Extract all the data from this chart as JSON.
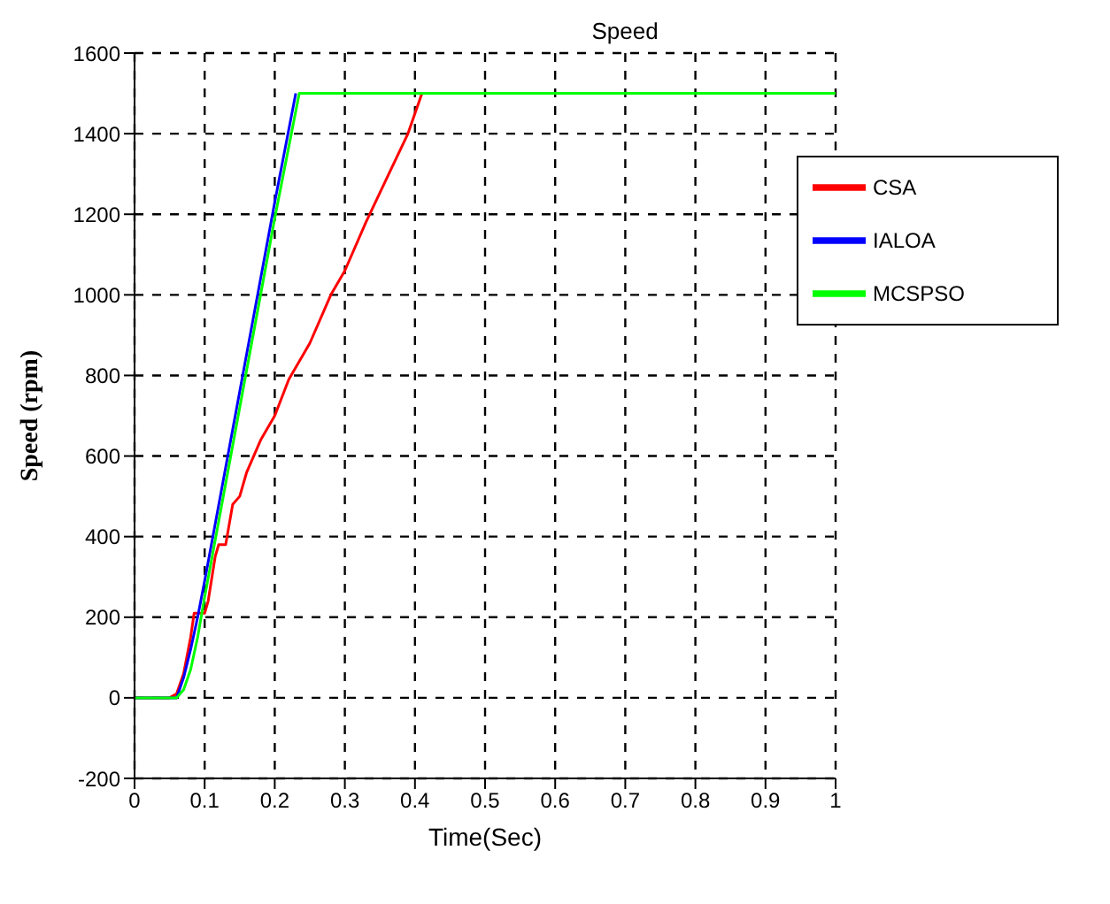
{
  "chart_data": {
    "type": "line",
    "title": "Speed",
    "xlabel": "Time(Sec)",
    "ylabel": "Speed (rpm)",
    "xlim": [
      0,
      1
    ],
    "xticks": [
      0,
      0.1,
      0.2,
      0.3,
      0.4,
      0.5,
      0.6,
      0.7,
      0.8,
      0.9,
      1
    ],
    "ylim": [
      -200,
      1600
    ],
    "yticks": [
      -200,
      0,
      200,
      400,
      600,
      800,
      1000,
      1200,
      1400,
      1600
    ],
    "grid": true,
    "legend": "top right",
    "line_style": "solid",
    "marker": "none",
    "series": [
      {
        "name": "CSA",
        "color": "#ff0000",
        "x": [
          0,
          0.05,
          0.06,
          0.07,
          0.08,
          0.085,
          0.1,
          0.105,
          0.115,
          0.12,
          0.13,
          0.14,
          0.15,
          0.16,
          0.18,
          0.2,
          0.22,
          0.25,
          0.28,
          0.3,
          0.33,
          0.36,
          0.39,
          0.41
        ],
        "values": [
          0,
          0,
          10,
          60,
          150,
          210,
          210,
          240,
          350,
          380,
          380,
          480,
          500,
          560,
          640,
          700,
          790,
          880,
          1000,
          1060,
          1180,
          1290,
          1400,
          1500
        ]
      },
      {
        "name": "IALOA",
        "color": "#0000ff",
        "x": [
          0,
          0.06,
          0.07,
          0.08,
          0.09,
          0.1,
          0.15,
          0.2,
          0.23
        ],
        "values": [
          0,
          0,
          50,
          120,
          200,
          290,
          760,
          1230,
          1500
        ]
      },
      {
        "name": "MCSPSO",
        "color": "#00ff00",
        "x": [
          0,
          0.06,
          0.07,
          0.08,
          0.09,
          0.1,
          0.15,
          0.2,
          0.235,
          1
        ],
        "values": [
          0,
          0,
          20,
          70,
          150,
          250,
          720,
          1190,
          1500,
          1500
        ]
      }
    ]
  }
}
